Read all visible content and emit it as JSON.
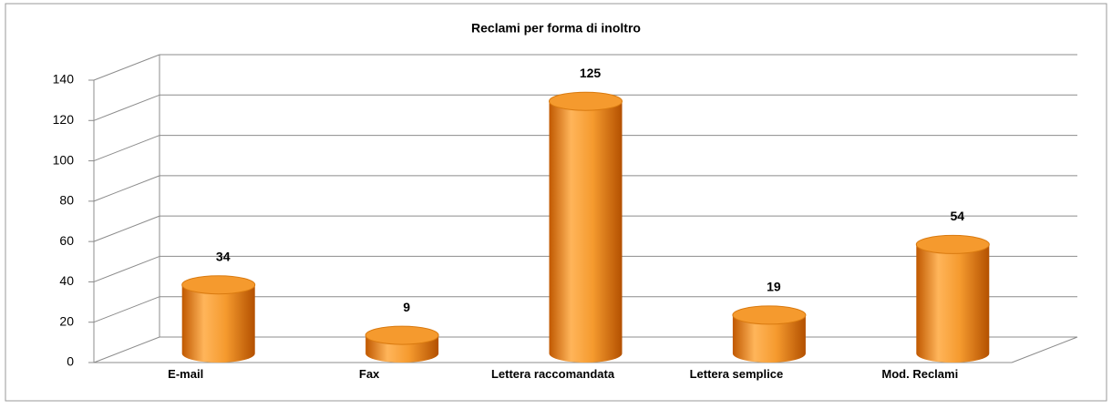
{
  "chart_data": {
    "type": "bar3d",
    "title": "Reclami per forma di inoltro",
    "categories": [
      "E-mail",
      "Fax",
      "Lettera raccomandata",
      "Lettera semplice",
      "Mod. Reclami"
    ],
    "values": [
      34,
      9,
      125,
      19,
      54
    ],
    "color": "#f59a2e",
    "ylim": [
      0,
      140
    ],
    "yticks": [
      0,
      20,
      40,
      60,
      80,
      100,
      120,
      140
    ],
    "grid": true
  }
}
